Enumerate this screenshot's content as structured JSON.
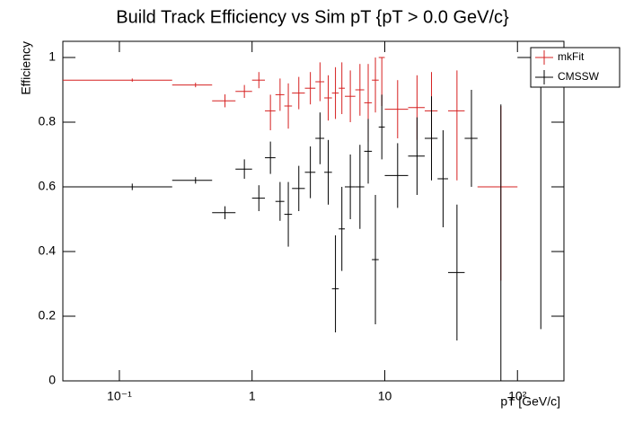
{
  "chart_data": {
    "type": "scatter",
    "title": "Build Track Efficiency vs Sim pT {pT > 0.0 GeV/c}",
    "x_label": "pT [GeV/c]",
    "y_label": "Efficiency",
    "log_x": true,
    "xlim": [
      0.0375,
      224
    ],
    "ylim": [
      0,
      1.05
    ],
    "xticks": [
      {
        "value": 0.1,
        "label": "10⁻¹"
      },
      1,
      10,
      {
        "value": 100,
        "label": "10²"
      }
    ],
    "yticks": [
      0,
      0.2,
      0.4,
      0.6,
      0.8,
      1
    ],
    "legend": "top-right",
    "series": [
      {
        "name": "mkFit",
        "color": "#d62020",
        "x": [
          0.125,
          0.375,
          0.625,
          0.875,
          1.125,
          1.375,
          1.625,
          1.875,
          2.25,
          2.75,
          3.25,
          3.75,
          4.25,
          4.75,
          5.5,
          6.5,
          7.5,
          8.5,
          9.5,
          12.5,
          17.5,
          22.5,
          35,
          75
        ],
        "x_low": [
          0,
          0.25,
          0.5,
          0.75,
          1,
          1.25,
          1.5,
          1.75,
          2,
          2.5,
          3,
          3.5,
          4,
          4.5,
          5,
          6,
          7,
          8,
          9,
          10,
          15,
          20,
          30,
          50
        ],
        "x_high": [
          0.25,
          0.5,
          0.75,
          1,
          1.25,
          1.5,
          1.75,
          2,
          2.5,
          3,
          3.5,
          4,
          4.5,
          5,
          6,
          7,
          8,
          9,
          10,
          15,
          20,
          25,
          40,
          100
        ],
        "values": [
          0.93,
          0.915,
          0.866,
          0.895,
          0.93,
          0.835,
          0.885,
          0.85,
          0.89,
          0.905,
          0.925,
          0.875,
          0.89,
          0.905,
          0.88,
          0.9,
          0.86,
          0.93,
          1.0,
          0.84,
          0.845,
          0.835,
          0.835,
          0.6
        ],
        "errors_low": [
          0.005,
          0.007,
          0.02,
          0.02,
          0.025,
          0.06,
          0.05,
          0.07,
          0.05,
          0.05,
          0.06,
          0.07,
          0.08,
          0.08,
          0.08,
          0.08,
          0.12,
          0.1,
          0.15,
          0.09,
          0.1,
          0.12,
          0.215,
          0.29
        ],
        "errors_high": [
          0.005,
          0.007,
          0.02,
          0.02,
          0.025,
          0.05,
          0.05,
          0.07,
          0.05,
          0.05,
          0.06,
          0.07,
          0.08,
          0.08,
          0.08,
          0.08,
          0.12,
          0.07,
          0.0,
          0.09,
          0.1,
          0.12,
          0.125,
          0.25
        ]
      },
      {
        "name": "CMSSW",
        "color": "#000000",
        "x": [
          0.125,
          0.375,
          0.625,
          0.875,
          1.125,
          1.375,
          1.625,
          1.875,
          2.25,
          2.75,
          3.25,
          3.75,
          4.25,
          4.75,
          5.5,
          6.5,
          7.5,
          8.5,
          9.5,
          12.5,
          17.5,
          22.5,
          27.5,
          35,
          45,
          75,
          150
        ],
        "x_low": [
          0,
          0.25,
          0.5,
          0.75,
          1,
          1.25,
          1.5,
          1.75,
          2,
          2.5,
          3,
          3.5,
          4,
          4.5,
          5,
          6,
          7,
          8,
          9,
          10,
          15,
          20,
          25,
          30,
          40,
          50,
          100
        ],
        "x_high": [
          0.25,
          0.5,
          0.75,
          1,
          1.25,
          1.5,
          1.75,
          2,
          2.5,
          3,
          3.5,
          4,
          4.5,
          5,
          6,
          7,
          8,
          9,
          10,
          15,
          20,
          25,
          30,
          40,
          50,
          100,
          200
        ],
        "values": [
          0.6,
          0.62,
          0.52,
          0.655,
          0.565,
          0.69,
          0.555,
          0.515,
          0.595,
          0.645,
          0.75,
          0.645,
          0.285,
          0.47,
          0.6,
          0.6,
          0.71,
          0.375,
          0.785,
          0.635,
          0.695,
          0.75,
          0.625,
          0.335,
          0.75,
          0.0,
          1.0
        ],
        "errors_low": [
          0.01,
          0.01,
          0.02,
          0.03,
          0.04,
          0.05,
          0.06,
          0.1,
          0.07,
          0.08,
          0.08,
          0.1,
          0.135,
          0.13,
          0.1,
          0.13,
          0.1,
          0.2,
          0.1,
          0.1,
          0.12,
          0.13,
          0.15,
          0.21,
          0.15,
          0.0,
          0.84
        ],
        "errors_high": [
          0.01,
          0.01,
          0.02,
          0.03,
          0.04,
          0.05,
          0.06,
          0.1,
          0.07,
          0.08,
          0.08,
          0.1,
          0.165,
          0.13,
          0.1,
          0.13,
          0.1,
          0.2,
          0.1,
          0.1,
          0.12,
          0.13,
          0.15,
          0.21,
          0.15,
          0.855,
          0.0
        ]
      }
    ]
  }
}
